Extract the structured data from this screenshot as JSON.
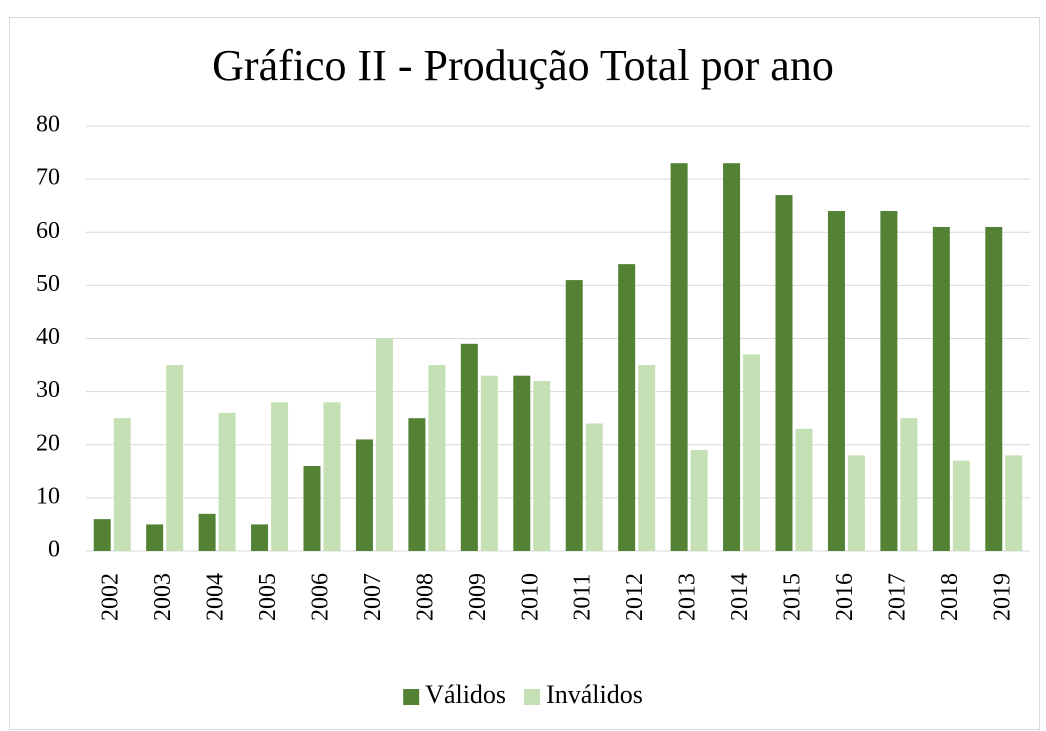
{
  "chart_data": {
    "type": "bar",
    "title": "Gráfico II - Produção Total por ano",
    "categories": [
      "2002",
      "2003",
      "2004",
      "2005",
      "2006",
      "2007",
      "2008",
      "2009",
      "2010",
      "2011",
      "2012",
      "2013",
      "2014",
      "2015",
      "2016",
      "2017",
      "2018",
      "2019"
    ],
    "series": [
      {
        "name": "Válidos",
        "color": "#548235",
        "values": [
          6,
          5,
          7,
          5,
          16,
          21,
          25,
          39,
          33,
          51,
          54,
          73,
          73,
          67,
          64,
          64,
          61,
          61
        ]
      },
      {
        "name": "Inválidos",
        "color": "#c5e0b4",
        "values": [
          25,
          35,
          26,
          28,
          28,
          40,
          35,
          33,
          32,
          24,
          35,
          19,
          37,
          23,
          18,
          25,
          17,
          18
        ]
      }
    ],
    "ylim": [
      0,
      80
    ],
    "yticks": [
      0,
      10,
      20,
      30,
      40,
      50,
      60,
      70,
      80
    ],
    "grid": true,
    "legend": "bottom"
  }
}
